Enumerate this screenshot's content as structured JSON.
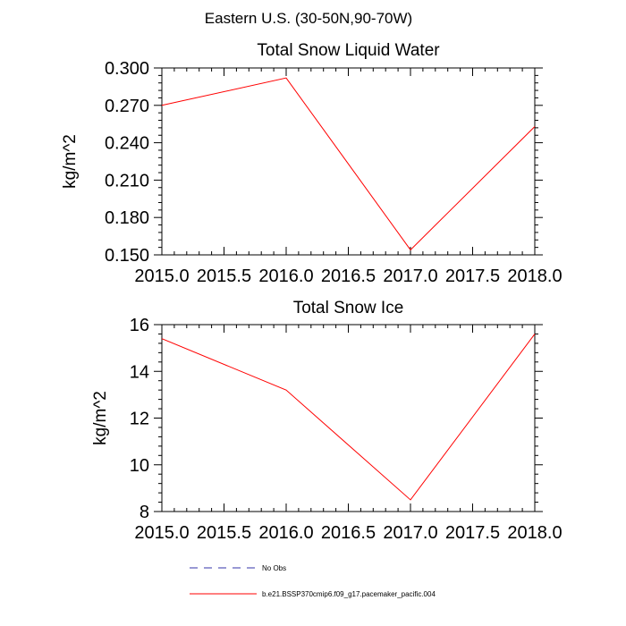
{
  "figure": {
    "title": "Eastern U.S. (30-50N,90-70W)"
  },
  "chart_data": [
    {
      "type": "line",
      "title": "Total Snow Liquid Water",
      "xlabel": "",
      "ylabel": "kg/m^2",
      "xlim": [
        2015.0,
        2018.0
      ],
      "ylim": [
        0.15,
        0.3
      ],
      "xticks": [
        2015.0,
        2015.5,
        2016.0,
        2016.5,
        2017.0,
        2017.5,
        2018.0
      ],
      "xtick_labels": [
        "2015.0",
        "2015.5",
        "2016.0",
        "2016.5",
        "2017.0",
        "2017.5",
        "2018.0"
      ],
      "yticks": [
        0.15,
        0.18,
        0.21,
        0.24,
        0.27,
        0.3
      ],
      "ytick_labels": [
        "0.150",
        "0.180",
        "0.210",
        "0.240",
        "0.270",
        "0.300"
      ],
      "grid": false,
      "series": [
        {
          "name": "b.e21.BSSP370cmip6.f09_g17.pacemaker_pacific.004",
          "color": "#ff0000",
          "x": [
            2015,
            2016,
            2017,
            2018
          ],
          "y": [
            0.27,
            0.292,
            0.154,
            0.253
          ]
        }
      ]
    },
    {
      "type": "line",
      "title": "Total Snow Ice",
      "xlabel": "",
      "ylabel": "kg/m^2",
      "xlim": [
        2015.0,
        2018.0
      ],
      "ylim": [
        8,
        16
      ],
      "xticks": [
        2015.0,
        2015.5,
        2016.0,
        2016.5,
        2017.0,
        2017.5,
        2018.0
      ],
      "xtick_labels": [
        "2015.0",
        "2015.5",
        "2016.0",
        "2016.5",
        "2017.0",
        "2017.5",
        "2018.0"
      ],
      "yticks": [
        8,
        10,
        12,
        14,
        16
      ],
      "ytick_labels": [
        "8",
        "10",
        "12",
        "14",
        "16"
      ],
      "grid": false,
      "series": [
        {
          "name": "b.e21.BSSP370cmip6.f09_g17.pacemaker_pacific.004",
          "color": "#ff0000",
          "x": [
            2015,
            2016,
            2017,
            2018
          ],
          "y": [
            15.4,
            13.2,
            8.5,
            15.6
          ]
        }
      ]
    }
  ],
  "legend": {
    "placement": "bottom",
    "entries": [
      {
        "label": "No Obs",
        "color": "#3333aa",
        "style": "dashed"
      },
      {
        "label": "b.e21.BSSP370cmip6.f09_g17.pacemaker_pacific.004",
        "color": "#ff0000",
        "style": "solid"
      }
    ]
  }
}
